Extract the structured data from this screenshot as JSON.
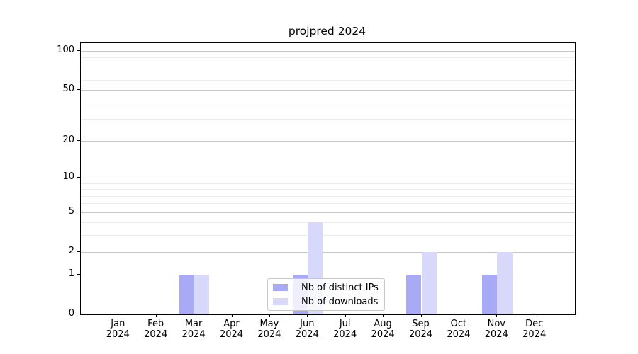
{
  "chart_data": {
    "type": "bar",
    "title": "projpred 2024",
    "categories": [
      "Jan",
      "Feb",
      "Mar",
      "Apr",
      "May",
      "Jun",
      "Jul",
      "Aug",
      "Sep",
      "Oct",
      "Nov",
      "Dec"
    ],
    "year_label": "2024",
    "series": [
      {
        "name": "Nb of distinct IPs",
        "color": "#a8aaf5",
        "values": [
          0,
          0,
          1,
          0,
          0,
          1,
          0,
          0,
          1,
          0,
          1,
          0
        ]
      },
      {
        "name": "Nb of downloads",
        "color": "#d8d9fa",
        "values": [
          0,
          0,
          1,
          0,
          0,
          4,
          0,
          0,
          2,
          0,
          2,
          0
        ]
      }
    ],
    "y_axis": {
      "scale": "log10(value+1)",
      "tick_values": [
        0,
        1,
        2,
        5,
        10,
        20,
        50,
        100
      ],
      "tick_labels": [
        "0",
        "1",
        "2",
        "5",
        "10",
        "20",
        "50",
        "100"
      ],
      "minor_gridline_values": [
        3,
        4,
        6,
        7,
        8,
        9,
        30,
        40,
        60,
        70,
        80,
        90
      ],
      "ylim": [
        0,
        116
      ]
    },
    "legend": {
      "position": "lower center",
      "frame_alpha": 0.8
    },
    "grid": "on",
    "colors": {
      "major_grid": "#c9c9c9",
      "minor_grid": "#ededed",
      "spine": "#000000",
      "background": "#ffffff"
    }
  }
}
